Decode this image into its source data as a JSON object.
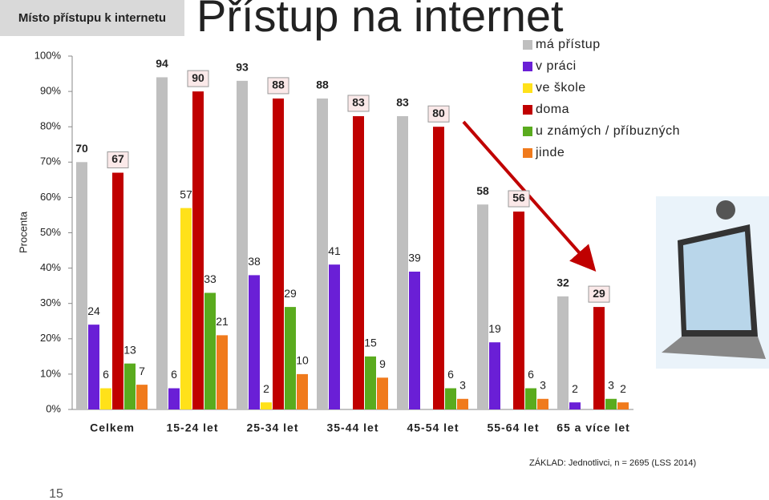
{
  "chart_data": {
    "type": "bar",
    "title": "Přístup na internet",
    "header_box": "Místo přístupu k internetu",
    "y_label": "Procenta",
    "footnote": "ZÁKLAD: Jednotlivci, n = 2695 (LSS 2014)",
    "page_number": "15",
    "categories": [
      "Celkem",
      "15-24 let",
      "25-34 let",
      "35-44 let",
      "45-54 let",
      "55-64 let",
      "65 a více let"
    ],
    "series": [
      {
        "name": "má přístup",
        "color": "#bfbfbf",
        "values": [
          70,
          94,
          93,
          88,
          83,
          58,
          32
        ]
      },
      {
        "name": "v práci",
        "color": "#6a1fd6",
        "values": [
          24,
          6,
          38,
          41,
          39,
          19,
          2
        ]
      },
      {
        "name": "ve škole",
        "color": "#ffe11a",
        "values": [
          6,
          57,
          2,
          null,
          null,
          null,
          null
        ]
      },
      {
        "name": "doma",
        "color": "#c00000",
        "values": [
          67,
          90,
          88,
          83,
          80,
          56,
          29
        ]
      },
      {
        "name": "u známých / příbuzných",
        "color": "#5aab1e",
        "values": [
          13,
          33,
          29,
          15,
          6,
          6,
          3
        ]
      },
      {
        "name": "jinde",
        "color": "#f07a1c",
        "values": [
          7,
          21,
          10,
          9,
          3,
          3,
          2
        ]
      }
    ],
    "ylim": [
      0,
      100
    ],
    "yticks": [
      {
        "value": 0,
        "label": "0%"
      },
      {
        "value": 10,
        "label": "10%"
      },
      {
        "value": 20,
        "label": "20%"
      },
      {
        "value": 30,
        "label": "30%"
      },
      {
        "value": 40,
        "label": "40%"
      },
      {
        "value": 50,
        "label": "50%"
      },
      {
        "value": 60,
        "label": "60%"
      },
      {
        "value": 70,
        "label": "70%"
      },
      {
        "value": 80,
        "label": "80%"
      },
      {
        "value": 90,
        "label": "90%"
      },
      {
        "value": 100,
        "label": "100%"
      }
    ]
  }
}
